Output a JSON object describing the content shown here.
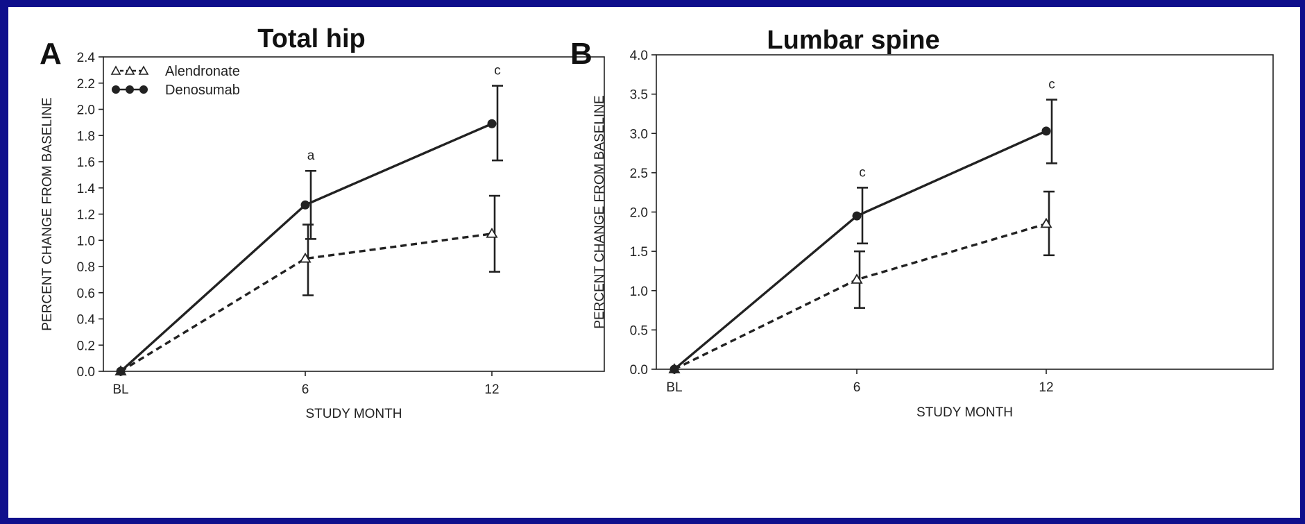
{
  "colors": {
    "frame": "#0f0f8c",
    "background": "#ffffff",
    "ink": "#222222"
  },
  "chart_data": [
    {
      "type": "line",
      "panel_letter": "A",
      "title": "Total hip",
      "xlabel": "STUDY MONTH",
      "ylabel": "PERCENT CHANGE FROM BASELINE",
      "categories": [
        "BL",
        "6",
        "12"
      ],
      "ylim": [
        0,
        2.4
      ],
      "yticks": [
        0.0,
        0.2,
        0.4,
        0.6,
        0.8,
        1.0,
        1.2,
        1.4,
        1.6,
        1.8,
        2.0,
        2.2,
        2.4
      ],
      "ytick_labels": [
        "0.0",
        "0.2",
        "0.4",
        "0.6",
        "0.8",
        "1.0",
        "1.2",
        "1.4",
        "1.6",
        "1.8",
        "2.0",
        "2.2",
        "2.4"
      ],
      "legend_position": "top-left",
      "series": [
        {
          "name": "Alendronate",
          "marker": "open-triangle",
          "line_style": "dashed",
          "values": [
            0.0,
            0.86,
            1.05
          ],
          "err_low": [
            null,
            0.58,
            0.76
          ],
          "err_high": [
            null,
            1.12,
            1.34
          ]
        },
        {
          "name": "Denosumab",
          "marker": "filled-circle",
          "line_style": "solid",
          "values": [
            0.0,
            1.27,
            1.89
          ],
          "err_low": [
            null,
            1.01,
            1.61
          ],
          "err_high": [
            null,
            1.53,
            2.18
          ]
        }
      ],
      "annotations": [
        {
          "x": "6",
          "y": 1.53,
          "text": "a"
        },
        {
          "x": "12",
          "y": 2.18,
          "text": "c"
        }
      ]
    },
    {
      "type": "line",
      "panel_letter": "B",
      "title": "Lumbar spine",
      "xlabel": "STUDY MONTH",
      "ylabel": "PERCENT CHANGE FROM BASELINE",
      "categories": [
        "BL",
        "6",
        "12"
      ],
      "ylim": [
        0,
        4.0
      ],
      "yticks": [
        0.0,
        0.5,
        1.0,
        1.5,
        2.0,
        2.5,
        3.0,
        3.5,
        4.0
      ],
      "ytick_labels": [
        "0.0",
        "0.5",
        "1.0",
        "1.5",
        "2.0",
        "2.5",
        "3.0",
        "3.5",
        "4.0"
      ],
      "legend_position": "none",
      "series": [
        {
          "name": "Alendronate",
          "marker": "open-triangle",
          "line_style": "dashed",
          "values": [
            0.0,
            1.14,
            1.85
          ],
          "err_low": [
            null,
            0.78,
            1.45
          ],
          "err_high": [
            null,
            1.5,
            2.26
          ]
        },
        {
          "name": "Denosumab",
          "marker": "filled-circle",
          "line_style": "solid",
          "values": [
            0.0,
            1.95,
            3.03
          ],
          "err_low": [
            null,
            1.6,
            2.62
          ],
          "err_high": [
            null,
            2.31,
            3.43
          ]
        }
      ],
      "annotations": [
        {
          "x": "6",
          "y": 2.31,
          "text": "c"
        },
        {
          "x": "12",
          "y": 3.43,
          "text": "c"
        }
      ]
    }
  ]
}
